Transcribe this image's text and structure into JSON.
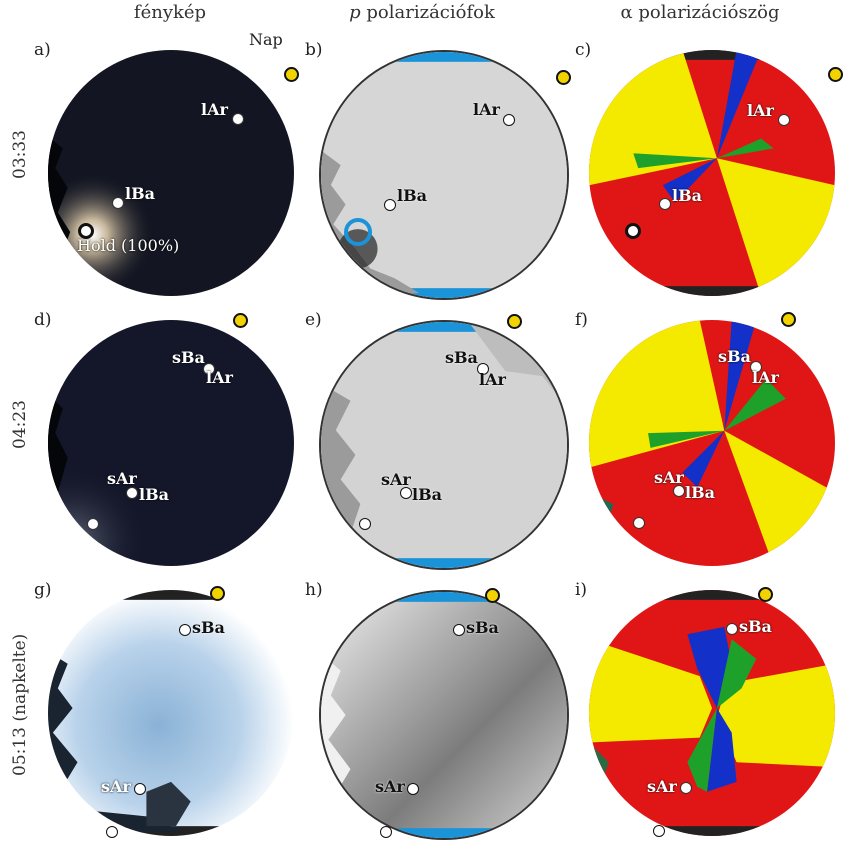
{
  "headers": {
    "photo": "fénykép",
    "degree_italic": "p",
    "degree": "polarizációfok",
    "angle": "α polarizációszög"
  },
  "rows": [
    "03:33",
    "04:23",
    "05:13 (napkelte)"
  ],
  "panels": [
    "a)",
    "b)",
    "c)",
    "d)",
    "e)",
    "f)",
    "g)",
    "h)",
    "i)"
  ],
  "labels": {
    "sun": "Nap",
    "moon": "Hold (100%)",
    "lAr": "lAr",
    "lBa": "lBa",
    "sBa": "sBa",
    "sAr": "sAr"
  },
  "colors": {
    "sun": "#f2d300",
    "night_sky": "#131622",
    "polarizer_blue": "#1a93d8",
    "angle_red": "#e01616",
    "angle_yellow": "#f4ea00",
    "angle_green": "#1ea12a",
    "angle_blue": "#1330c8"
  }
}
